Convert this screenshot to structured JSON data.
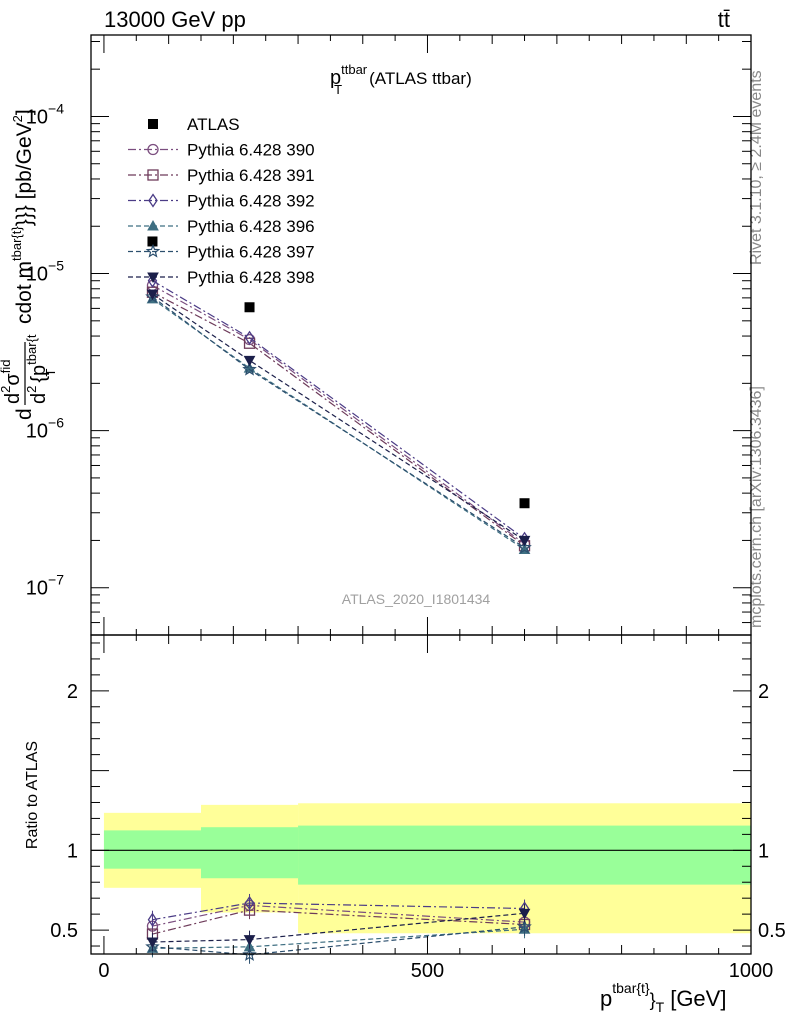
{
  "header": {
    "energy_label": "13000 GeV pp",
    "process_label": "tt̄"
  },
  "side_labels": {
    "rivet": "Rivet 3.1.10, ≥ 2.4M events",
    "mcplots": "mcplots.cern.ch [arXiv:1306.3436]"
  },
  "chart_data": {
    "type": "scatter",
    "title_main": "p",
    "title_sup": "ttbar",
    "title_sub": "T",
    "title_suffix": "(ATLAS ttbar)",
    "watermark": "ATLAS_2020_I1801434",
    "ylabel": "d d²σ^fid / d² {p^tbar{t}_T} cdot m^tbar{t}}}} [pb/GeV²]",
    "ylabel_parts": {
      "d1": "d",
      "num_d2": "d",
      "num_sup": "2",
      "num_sigma": "σ",
      "num_fid": "fid",
      "den_d2": "d",
      "den_sup": "2",
      "den_p": "{p",
      "den_tbar": "tbar{t",
      "den_T": "T",
      "cdot": "cdot m",
      "cdot_sup": "tbar{t}",
      "units": "}}} [pb/GeV",
      "units_sup": "2",
      "units_close": "]"
    },
    "xlabel_main": "p",
    "xlabel_sup": "tbar{t}",
    "xlabel_sub": "}",
    "xlabel_T": "T",
    "xlabel_units": "[GeV]",
    "ratio_ylabel": "Ratio to ATLAS",
    "xlim": [
      -20,
      1000
    ],
    "ylim_main": [
      5e-08,
      0.00033
    ],
    "ylim_ratio": [
      0.35,
      2.35
    ],
    "y_scale_main": "log",
    "x_ticks": [
      0,
      500,
      1000
    ],
    "y_ticks_main": [
      {
        "base": "10",
        "exp": "−7",
        "value": 1e-07
      },
      {
        "base": "10",
        "exp": "−6",
        "value": 1e-06
      },
      {
        "base": "10",
        "exp": "−5",
        "value": 1e-05
      },
      {
        "base": "10",
        "exp": "−4",
        "value": 0.0001
      }
    ],
    "y_ticks_ratio": [
      {
        "label": "0.5",
        "value": 0.5
      },
      {
        "label": "1",
        "value": 1
      },
      {
        "label": "2",
        "value": 2
      }
    ],
    "bins": [
      {
        "lo": 0,
        "hi": 150,
        "center": 75
      },
      {
        "lo": 150,
        "hi": 300,
        "center": 225
      },
      {
        "lo": 300,
        "hi": 1000,
        "center": 650
      }
    ],
    "data": {
      "name": "ATLAS",
      "x": [
        75,
        225,
        650
      ],
      "y": [
        1.6e-05,
        6.1e-06,
        3.45e-07
      ]
    },
    "ratio_bands": {
      "green_lo": [
        0.885,
        0.825,
        0.785
      ],
      "green_hi": [
        1.125,
        1.145,
        1.155
      ],
      "yellow_lo": [
        0.765,
        0.61,
        0.48
      ],
      "yellow_hi": [
        1.235,
        1.285,
        1.295
      ]
    },
    "legend_position": "top-left",
    "series": [
      {
        "name": "Pythia 6.428 390",
        "color": "#7b4e7f",
        "marker": "circle",
        "dash": "8,3,2,3",
        "y": [
          8.4e-06,
          3.8e-06,
          1.9e-07
        ],
        "ratio": [
          0.525,
          0.655,
          0.55
        ]
      },
      {
        "name": "Pythia 6.428 391",
        "color": "#6e3b5a",
        "marker": "square",
        "dash": "8,3,2,3",
        "y": [
          7.6e-06,
          3.6e-06,
          1.85e-07
        ],
        "ratio": [
          0.475,
          0.625,
          0.535
        ]
      },
      {
        "name": "Pythia 6.428 392",
        "color": "#4b3c86",
        "marker": "diamond",
        "dash": "8,3,2,3",
        "y": [
          9e-06,
          3.9e-06,
          2.05e-07
        ],
        "ratio": [
          0.565,
          0.67,
          0.635
        ]
      },
      {
        "name": "Pythia 6.428 396",
        "color": "#3f6f82",
        "marker": "triangle",
        "dash": "5,3",
        "y": [
          6.9e-06,
          2.5e-06,
          1.75e-07
        ],
        "ratio": [
          0.385,
          0.395,
          0.505
        ]
      },
      {
        "name": "Pythia 6.428 397",
        "color": "#2c4f6e",
        "marker": "star",
        "dash": "5,3",
        "y": [
          7.1e-06,
          2.45e-06,
          1.8e-07
        ],
        "ratio": [
          0.395,
          0.345,
          0.52
        ]
      },
      {
        "name": "Pythia 6.428 398",
        "color": "#1b1f4a",
        "marker": "invtriangle",
        "dash": "5,3",
        "y": [
          7.4e-06,
          2.8e-06,
          2e-07
        ],
        "ratio": [
          0.425,
          0.44,
          0.605
        ]
      }
    ]
  }
}
